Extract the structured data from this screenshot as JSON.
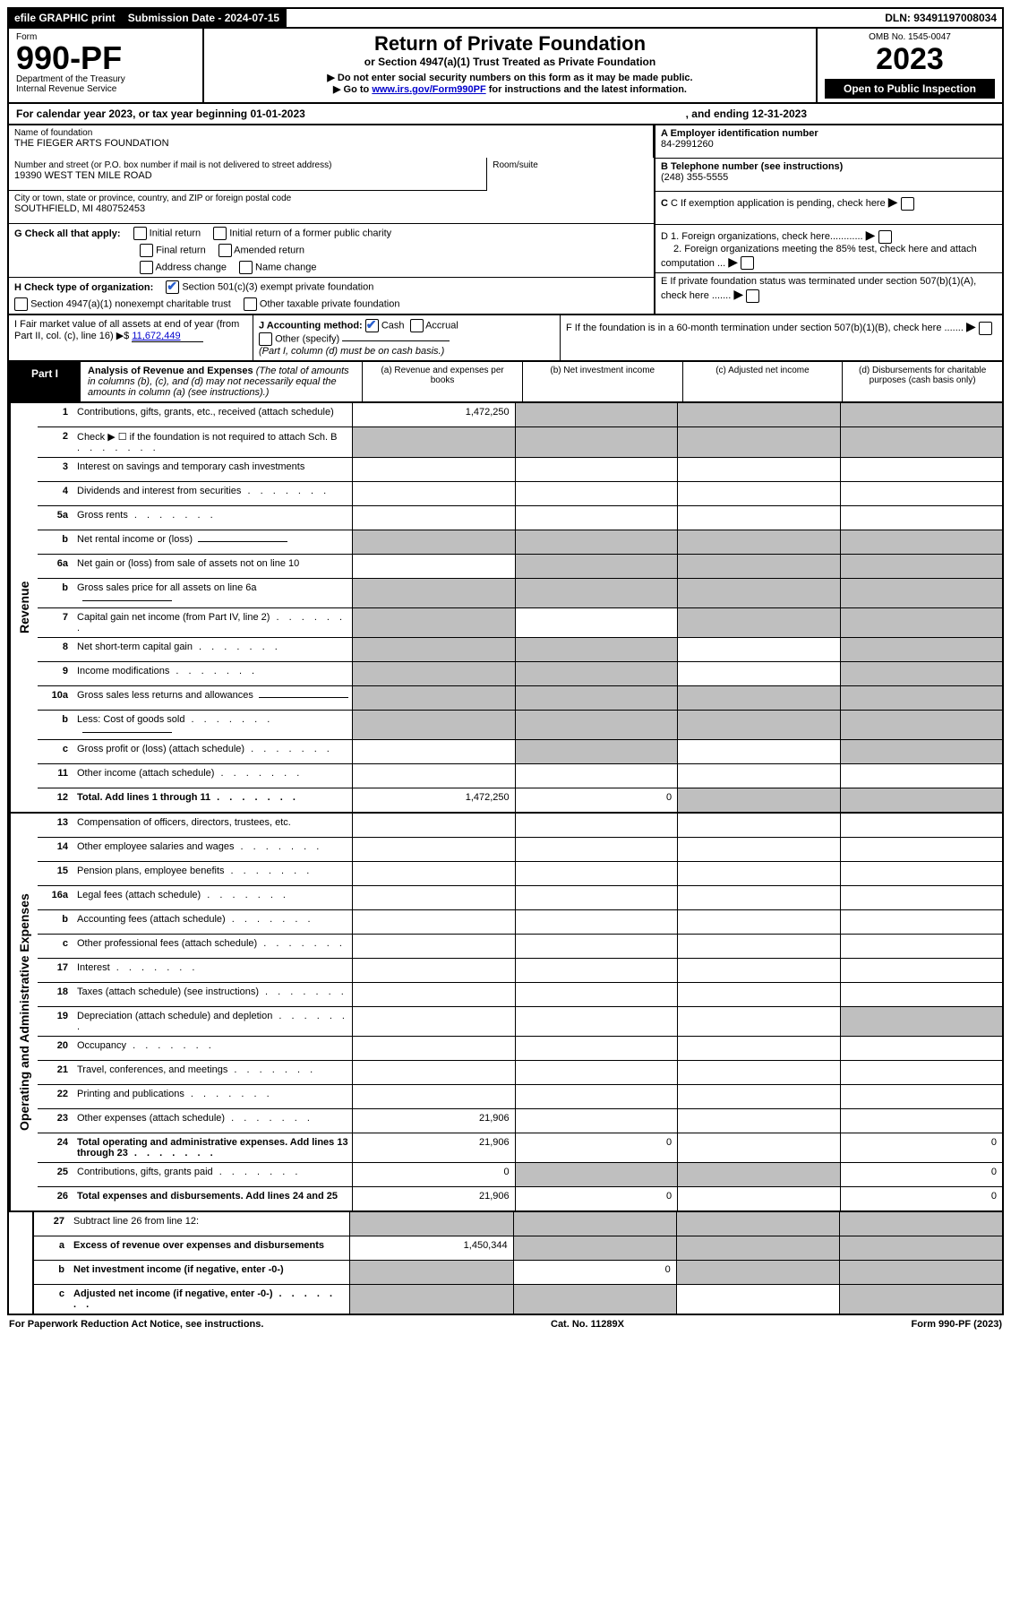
{
  "top": {
    "efile": "efile GRAPHIC print",
    "sub_label": "Submission Date - 2024-07-15",
    "dln": "DLN: 93491197008034"
  },
  "header": {
    "form_word": "Form",
    "form_no": "990-PF",
    "dept1": "Department of the Treasury",
    "dept2": "Internal Revenue Service",
    "title": "Return of Private Foundation",
    "subtitle": "or Section 4947(a)(1) Trust Treated as Private Foundation",
    "note1": "▶ Do not enter social security numbers on this form as it may be made public.",
    "note2_prefix": "▶ Go to ",
    "note2_link": "www.irs.gov/Form990PF",
    "note2_suffix": " for instructions and the latest information.",
    "omb": "OMB No. 1545-0047",
    "year": "2023",
    "inspection": "Open to Public Inspection"
  },
  "calendar": {
    "text": "For calendar year 2023, or tax year beginning 01-01-2023",
    "ending": ", and ending 12-31-2023"
  },
  "info": {
    "name_label": "Name of foundation",
    "name": "THE FIEGER ARTS FOUNDATION",
    "addr_label": "Number and street (or P.O. box number if mail is not delivered to street address)",
    "addr": "19390 WEST TEN MILE ROAD",
    "room_label": "Room/suite",
    "city_label": "City or town, state or province, country, and ZIP or foreign postal code",
    "city": "SOUTHFIELD, MI 480752453",
    "a_label": "A Employer identification number",
    "a_val": "84-2991260",
    "b_label": "B Telephone number (see instructions)",
    "b_val": "(248) 355-5555",
    "c_label": "C If exemption application is pending, check here",
    "d1": "D 1. Foreign organizations, check here............",
    "d2": "2. Foreign organizations meeting the 85% test, check here and attach computation ...",
    "e": "E If private foundation status was terminated under section 507(b)(1)(A), check here .......",
    "f": "F If the foundation is in a 60-month termination under section 507(b)(1)(B), check here .......",
    "g_label": "G Check all that apply:",
    "g_opts": [
      "Initial return",
      "Initial return of a former public charity",
      "Final return",
      "Amended return",
      "Address change",
      "Name change"
    ],
    "h_label": "H Check type of organization:",
    "h_opts": [
      "Section 501(c)(3) exempt private foundation",
      "Section 4947(a)(1) nonexempt charitable trust",
      "Other taxable private foundation"
    ],
    "i_label": "I Fair market value of all assets at end of year (from Part II, col. (c), line 16) ▶$ ",
    "i_val": "11,672,449",
    "j_label": "J Accounting method:",
    "j_cash": "Cash",
    "j_accrual": "Accrual",
    "j_other": "Other (specify)",
    "j_note": "(Part I, column (d) must be on cash basis.)"
  },
  "part1": {
    "label": "Part I",
    "title": "Analysis of Revenue and Expenses",
    "title_note": " (The total of amounts in columns (b), (c), and (d) may not necessarily equal the amounts in column (a) (see instructions).)",
    "col_a": "(a) Revenue and expenses per books",
    "col_b": "(b) Net investment income",
    "col_c": "(c) Adjusted net income",
    "col_d": "(d) Disbursements for charitable purposes (cash basis only)"
  },
  "side": {
    "revenue": "Revenue",
    "expenses": "Operating and Administrative Expenses"
  },
  "rows_rev": [
    {
      "n": "1",
      "d": "Contributions, gifts, grants, etc., received (attach schedule)",
      "a": "1,472,250",
      "sb": true,
      "sc": true,
      "sd": true
    },
    {
      "n": "2",
      "d": "Check ▶ ☐ if the foundation is not required to attach Sch. B",
      "dotted": true,
      "sa": true,
      "sb": true,
      "sc": true,
      "sd": true
    },
    {
      "n": "3",
      "d": "Interest on savings and temporary cash investments"
    },
    {
      "n": "4",
      "d": "Dividends and interest from securities",
      "dotted": true
    },
    {
      "n": "5a",
      "d": "Gross rents",
      "dotted": true
    },
    {
      "n": "b",
      "d": "Net rental income or (loss)",
      "sa": true,
      "sb": true,
      "sc": true,
      "sd": true,
      "inline_blank": true
    },
    {
      "n": "6a",
      "d": "Net gain or (loss) from sale of assets not on line 10",
      "sb": true,
      "sc": true,
      "sd": true
    },
    {
      "n": "b",
      "d": "Gross sales price for all assets on line 6a",
      "sa": true,
      "sb": true,
      "sc": true,
      "sd": true,
      "inline_blank": true
    },
    {
      "n": "7",
      "d": "Capital gain net income (from Part IV, line 2)",
      "dotted": true,
      "sa": true,
      "sc": true,
      "sd": true
    },
    {
      "n": "8",
      "d": "Net short-term capital gain",
      "dotted": true,
      "sa": true,
      "sb": true,
      "sd": true
    },
    {
      "n": "9",
      "d": "Income modifications",
      "dotted": true,
      "sa": true,
      "sb": true,
      "sd": true
    },
    {
      "n": "10a",
      "d": "Gross sales less returns and allowances",
      "sa": true,
      "sb": true,
      "sc": true,
      "sd": true,
      "inline_blank": true
    },
    {
      "n": "b",
      "d": "Less: Cost of goods sold",
      "dotted": true,
      "sa": true,
      "sb": true,
      "sc": true,
      "sd": true,
      "inline_blank": true
    },
    {
      "n": "c",
      "d": "Gross profit or (loss) (attach schedule)",
      "dotted": true,
      "sb": true,
      "sd": true
    },
    {
      "n": "11",
      "d": "Other income (attach schedule)",
      "dotted": true
    },
    {
      "n": "12",
      "d": "Total. Add lines 1 through 11",
      "dotted": true,
      "bold": true,
      "a": "1,472,250",
      "b": "0",
      "sc": true,
      "sd": true
    }
  ],
  "rows_exp": [
    {
      "n": "13",
      "d": "Compensation of officers, directors, trustees, etc."
    },
    {
      "n": "14",
      "d": "Other employee salaries and wages",
      "dotted": true
    },
    {
      "n": "15",
      "d": "Pension plans, employee benefits",
      "dotted": true
    },
    {
      "n": "16a",
      "d": "Legal fees (attach schedule)",
      "dotted": true
    },
    {
      "n": "b",
      "d": "Accounting fees (attach schedule)",
      "dotted": true
    },
    {
      "n": "c",
      "d": "Other professional fees (attach schedule)",
      "dotted": true
    },
    {
      "n": "17",
      "d": "Interest",
      "dotted": true
    },
    {
      "n": "18",
      "d": "Taxes (attach schedule) (see instructions)",
      "dotted": true
    },
    {
      "n": "19",
      "d": "Depreciation (attach schedule) and depletion",
      "dotted": true,
      "sd": true
    },
    {
      "n": "20",
      "d": "Occupancy",
      "dotted": true
    },
    {
      "n": "21",
      "d": "Travel, conferences, and meetings",
      "dotted": true
    },
    {
      "n": "22",
      "d": "Printing and publications",
      "dotted": true
    },
    {
      "n": "23",
      "d": "Other expenses (attach schedule)",
      "dotted": true,
      "a": "21,906"
    },
    {
      "n": "24",
      "d": "Total operating and administrative expenses. Add lines 13 through 23",
      "dotted": true,
      "bold": true,
      "a": "21,906",
      "b": "0",
      "dval": "0"
    },
    {
      "n": "25",
      "d": "Contributions, gifts, grants paid",
      "dotted": true,
      "a": "0",
      "sb": true,
      "sc": true,
      "dval": "0"
    },
    {
      "n": "26",
      "d": "Total expenses and disbursements. Add lines 24 and 25",
      "bold": true,
      "a": "21,906",
      "b": "0",
      "dval": "0"
    }
  ],
  "rows_bot": [
    {
      "n": "27",
      "d": "Subtract line 26 from line 12:",
      "bold": false,
      "sa": true,
      "sb": true,
      "sc": true,
      "sd": true
    },
    {
      "n": "a",
      "d": "Excess of revenue over expenses and disbursements",
      "bold": true,
      "a": "1,450,344",
      "sb": true,
      "sc": true,
      "sd": true
    },
    {
      "n": "b",
      "d": "Net investment income (if negative, enter -0-)",
      "bold": true,
      "sa": true,
      "b": "0",
      "sc": true,
      "sd": true
    },
    {
      "n": "c",
      "d": "Adjusted net income (if negative, enter -0-)",
      "bold": true,
      "dotted": true,
      "sa": true,
      "sb": true,
      "sd": true
    }
  ],
  "footer": {
    "left": "For Paperwork Reduction Act Notice, see instructions.",
    "mid": "Cat. No. 11289X",
    "right": "Form 990-PF (2023)"
  }
}
